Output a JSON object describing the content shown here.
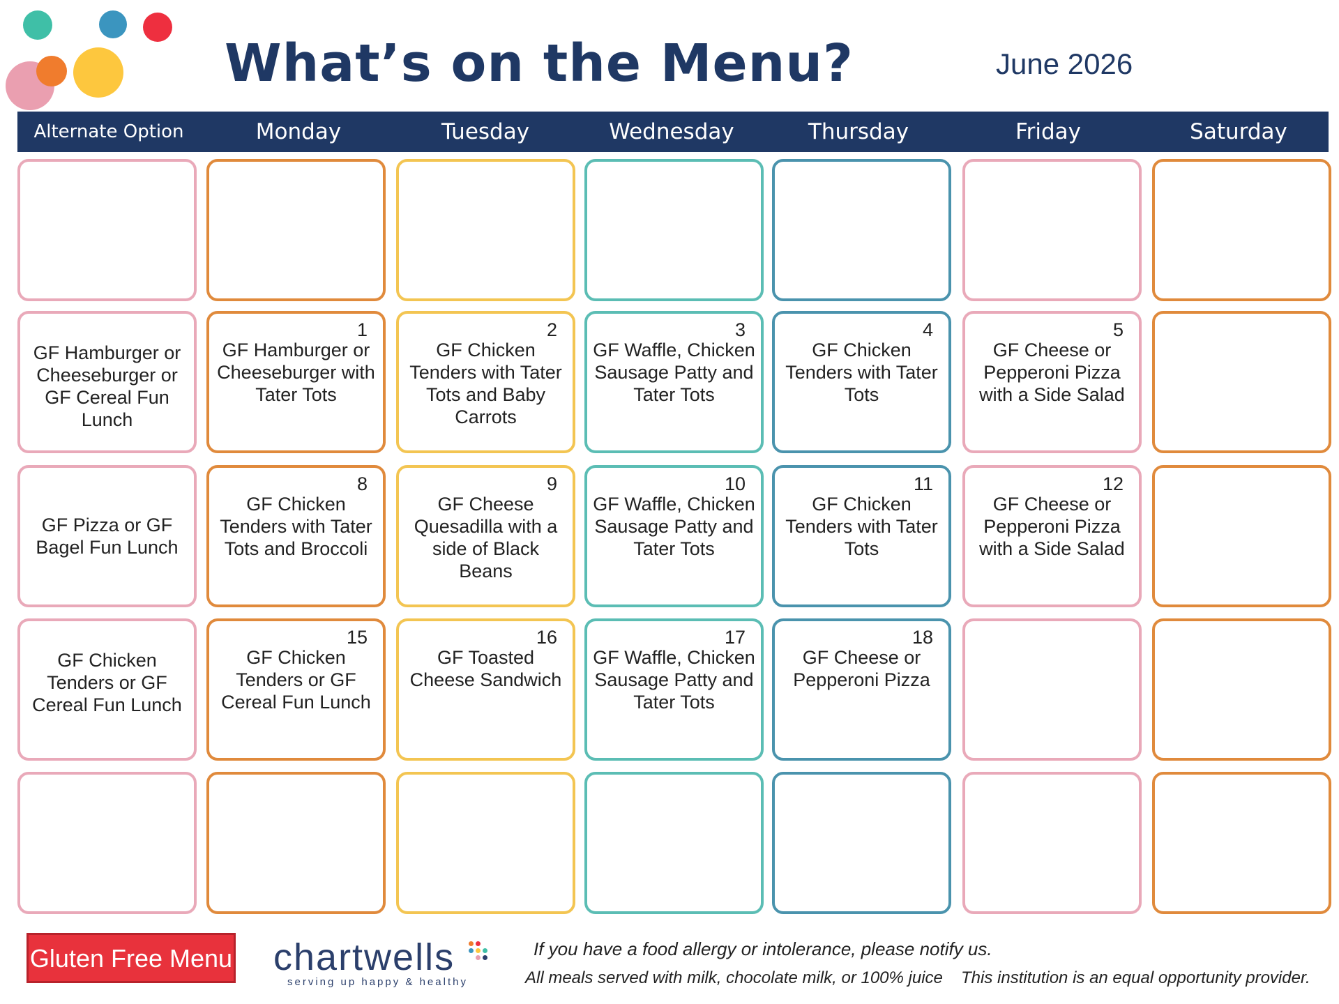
{
  "colors": {
    "navy": "#1f3864",
    "pink": "#e9a9b9",
    "orange": "#e08a3c",
    "yellow": "#f3c552",
    "teal": "#5bbdb4",
    "blue": "#4a93ad",
    "badge_red": "#e8323c"
  },
  "header": {
    "title": "What’s on the Menu?",
    "month": "June 2026",
    "columns": [
      "Alternate Option",
      "Monday",
      "Tuesday",
      "Wednesday",
      "Thursday",
      "Friday",
      "Saturday"
    ]
  },
  "calendar": {
    "rows": [
      [
        {
          "day": "",
          "meal": ""
        },
        {
          "day": "",
          "meal": ""
        },
        {
          "day": "",
          "meal": ""
        },
        {
          "day": "",
          "meal": ""
        },
        {
          "day": "",
          "meal": ""
        },
        {
          "day": "",
          "meal": ""
        },
        {
          "day": "",
          "meal": ""
        }
      ],
      [
        {
          "day": "",
          "meal": "GF Hamburger or Cheeseburger or GF Cereal Fun Lunch"
        },
        {
          "day": "1",
          "meal": "GF Hamburger or Cheeseburger with Tater Tots"
        },
        {
          "day": "2",
          "meal": "GF Chicken Tenders with Tater Tots and Baby Carrots"
        },
        {
          "day": "3",
          "meal": "GF Waffle, Chicken Sausage Patty and Tater Tots"
        },
        {
          "day": "4",
          "meal": "GF Chicken Tenders with Tater Tots"
        },
        {
          "day": "5",
          "meal": "GF Cheese or Pepperoni Pizza with a Side Salad"
        },
        {
          "day": "",
          "meal": ""
        }
      ],
      [
        {
          "day": "",
          "meal": "GF Pizza or GF Bagel Fun Lunch"
        },
        {
          "day": "8",
          "meal": "GF Chicken Tenders with Tater Tots and Broccoli"
        },
        {
          "day": "9",
          "meal": "GF Cheese Quesadilla with a side of Black Beans"
        },
        {
          "day": "10",
          "meal": "GF Waffle, Chicken Sausage Patty and Tater Tots"
        },
        {
          "day": "11",
          "meal": "GF Chicken Tenders with Tater Tots"
        },
        {
          "day": "12",
          "meal": "GF Cheese or Pepperoni Pizza with a Side Salad"
        },
        {
          "day": "",
          "meal": ""
        }
      ],
      [
        {
          "day": "",
          "meal": "GF Chicken Tenders or GF Cereal Fun Lunch"
        },
        {
          "day": "15",
          "meal": "GF Chicken Tenders or GF Cereal Fun Lunch"
        },
        {
          "day": "16",
          "meal": "GF Toasted Cheese Sandwich"
        },
        {
          "day": "17",
          "meal": "GF Waffle, Chicken Sausage Patty and Tater Tots"
        },
        {
          "day": "18",
          "meal": "GF Cheese or Pepperoni Pizza"
        },
        {
          "day": "",
          "meal": ""
        },
        {
          "day": "",
          "meal": ""
        }
      ],
      [
        {
          "day": "",
          "meal": ""
        },
        {
          "day": "",
          "meal": ""
        },
        {
          "day": "",
          "meal": ""
        },
        {
          "day": "",
          "meal": ""
        },
        {
          "day": "",
          "meal": ""
        },
        {
          "day": "",
          "meal": ""
        },
        {
          "day": "",
          "meal": ""
        }
      ]
    ]
  },
  "footer": {
    "badge_label": "Gluten Free Menu",
    "logo_text": "chartwells",
    "logo_tagline": "serving up happy & healthy",
    "allergy_note": "If you have a food allergy or intolerance, please notify us.",
    "meals_note": "All meals served with milk, chocolate milk, or 100% juice",
    "equal_opportunity": "This institution is an equal opportunity provider."
  }
}
